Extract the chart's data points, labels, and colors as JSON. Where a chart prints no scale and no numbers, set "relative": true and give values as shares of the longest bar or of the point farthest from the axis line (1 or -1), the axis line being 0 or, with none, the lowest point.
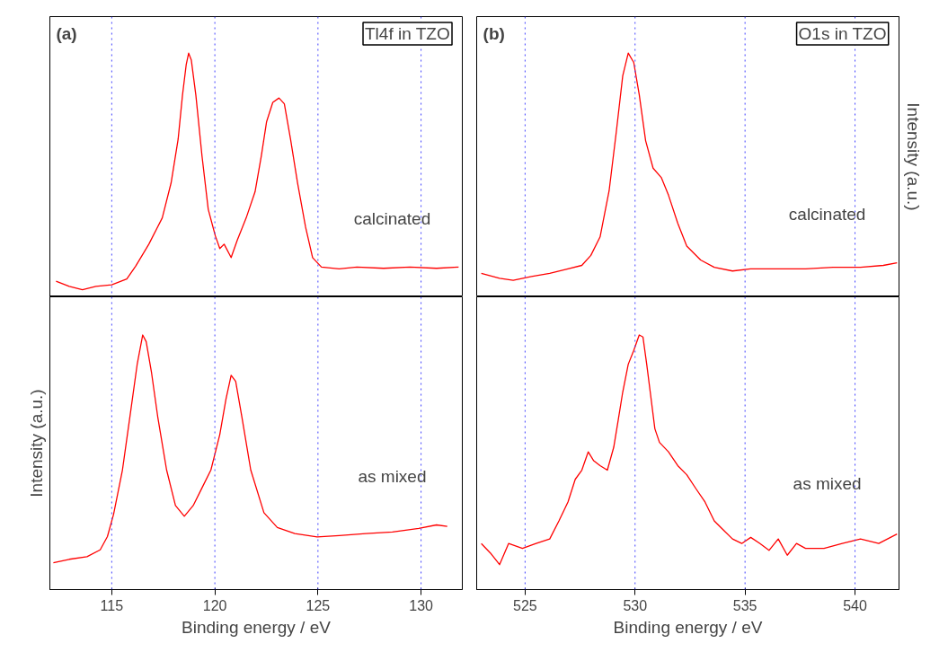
{
  "chart_data": [
    {
      "type": "line",
      "relative": true,
      "xlim": [
        112,
        132
      ],
      "tick_labels": false,
      "grid": false,
      "legend": false,
      "marker": "none",
      "line_style": "solid",
      "annotations": [
        "(a)",
        "Tl4f in TZO"
      ],
      "ref_lines": [
        {
          "axis": "x",
          "value": 115,
          "color": "#4040ff",
          "line_style": "dotted"
        },
        {
          "axis": "x",
          "value": 120,
          "color": "#4040ff",
          "line_style": "dotted"
        },
        {
          "axis": "x",
          "value": 125,
          "color": "#4040ff",
          "line_style": "dotted"
        },
        {
          "axis": "x",
          "value": 130,
          "color": "#4040ff",
          "line_style": "dotted"
        }
      ],
      "series": [
        {
          "name": "calcinated",
          "color": "#ff0000",
          "x": [
            112.3,
            112.94,
            113.58,
            114.23,
            115.0,
            115.73,
            116.16,
            116.8,
            117.45,
            117.88,
            118.22,
            118.43,
            118.61,
            118.73,
            118.86,
            119.08,
            119.38,
            119.68,
            120.02,
            120.24,
            120.45,
            120.79,
            121.09,
            121.52,
            121.95,
            122.25,
            122.51,
            122.81,
            123.11,
            123.37,
            123.67,
            124.01,
            124.4,
            124.74,
            125.17,
            126.03,
            126.89,
            128.18,
            129.46,
            130.75,
            131.82
          ],
          "values": [
            0.064,
            0.043,
            0.029,
            0.043,
            0.049,
            0.073,
            0.126,
            0.216,
            0.324,
            0.468,
            0.647,
            0.827,
            0.952,
            1.0,
            0.971,
            0.827,
            0.576,
            0.359,
            0.251,
            0.198,
            0.216,
            0.161,
            0.233,
            0.324,
            0.431,
            0.576,
            0.719,
            0.798,
            0.816,
            0.792,
            0.647,
            0.468,
            0.286,
            0.161,
            0.122,
            0.115,
            0.122,
            0.117,
            0.122,
            0.117,
            0.122
          ]
        }
      ]
    },
    {
      "type": "line",
      "xlabel": "Binding energy / eV",
      "ylabel": "Intensity (a.u.)",
      "relative": true,
      "xlim": [
        112,
        132
      ],
      "xticks": [
        115,
        120,
        125,
        130
      ],
      "tick_labels": "x",
      "grid": false,
      "legend": false,
      "marker": "none",
      "line_style": "solid",
      "ref_lines": [
        {
          "axis": "x",
          "value": 115,
          "color": "#4040ff",
          "line_style": "dotted"
        },
        {
          "axis": "x",
          "value": 120,
          "color": "#4040ff",
          "line_style": "dotted"
        },
        {
          "axis": "x",
          "value": 125,
          "color": "#4040ff",
          "line_style": "dotted"
        },
        {
          "axis": "x",
          "value": 130,
          "color": "#4040ff",
          "line_style": "dotted"
        }
      ],
      "series": [
        {
          "name": "as mixed",
          "color": "#ff0000",
          "x": [
            112.17,
            112.94,
            113.8,
            114.44,
            114.79,
            115.09,
            115.52,
            115.94,
            116.24,
            116.5,
            116.67,
            116.93,
            117.23,
            117.66,
            118.09,
            118.52,
            118.95,
            119.38,
            119.81,
            120.24,
            120.54,
            120.79,
            121.01,
            121.31,
            121.74,
            122.38,
            123.03,
            123.88,
            124.96,
            126.03,
            127.32,
            128.61,
            129.89,
            130.75,
            131.27
          ],
          "values": [
            0.105,
            0.119,
            0.129,
            0.156,
            0.208,
            0.296,
            0.47,
            0.713,
            0.888,
            1.0,
            0.974,
            0.852,
            0.679,
            0.47,
            0.33,
            0.288,
            0.33,
            0.4,
            0.47,
            0.609,
            0.748,
            0.842,
            0.818,
            0.679,
            0.47,
            0.302,
            0.244,
            0.22,
            0.207,
            0.212,
            0.22,
            0.226,
            0.24,
            0.254,
            0.248
          ]
        }
      ]
    },
    {
      "type": "line",
      "y2label": "Intensity (a.u.)",
      "relative": true,
      "xlim": [
        522.8,
        542
      ],
      "tick_labels": false,
      "grid": false,
      "legend": false,
      "marker": "none",
      "line_style": "solid",
      "annotations": [
        "(b)",
        "O1s in TZO"
      ],
      "ref_lines": [
        {
          "axis": "x",
          "value": 525,
          "color": "#4040ff",
          "line_style": "dotted"
        },
        {
          "axis": "x",
          "value": 530,
          "color": "#4040ff",
          "line_style": "dotted"
        },
        {
          "axis": "x",
          "value": 535,
          "color": "#4040ff",
          "line_style": "dotted"
        },
        {
          "axis": "x",
          "value": 540,
          "color": "#4040ff",
          "line_style": "dotted"
        }
      ],
      "series": [
        {
          "name": "calcinated",
          "color": "#ff0000",
          "x": [
            523.01,
            523.84,
            524.46,
            525.29,
            526.12,
            526.95,
            527.58,
            527.99,
            528.41,
            528.82,
            529.15,
            529.44,
            529.69,
            529.94,
            530.19,
            530.48,
            530.82,
            531.19,
            531.52,
            531.94,
            532.35,
            532.98,
            533.6,
            534.43,
            535.25,
            536.51,
            537.75,
            539.0,
            540.25,
            541.29,
            541.91
          ],
          "values": [
            0.096,
            0.076,
            0.068,
            0.083,
            0.096,
            0.115,
            0.129,
            0.17,
            0.246,
            0.435,
            0.679,
            0.907,
            1.0,
            0.962,
            0.83,
            0.641,
            0.528,
            0.49,
            0.417,
            0.302,
            0.208,
            0.151,
            0.121,
            0.106,
            0.115,
            0.115,
            0.115,
            0.121,
            0.121,
            0.129,
            0.14
          ]
        }
      ]
    },
    {
      "type": "line",
      "xlabel": "Binding energy / eV",
      "relative": true,
      "xlim": [
        522.8,
        542
      ],
      "xticks": [
        525,
        530,
        535,
        540
      ],
      "tick_labels": "x",
      "grid": false,
      "legend": false,
      "marker": "none",
      "line_style": "solid",
      "ref_lines": [
        {
          "axis": "x",
          "value": 525,
          "color": "#4040ff",
          "line_style": "dotted"
        },
        {
          "axis": "x",
          "value": 530,
          "color": "#4040ff",
          "line_style": "dotted"
        },
        {
          "axis": "x",
          "value": 535,
          "color": "#4040ff",
          "line_style": "dotted"
        },
        {
          "axis": "x",
          "value": 540,
          "color": "#4040ff",
          "line_style": "dotted"
        }
      ],
      "series": [
        {
          "name": "as mixed",
          "color": "#ff0000",
          "x": [
            523.01,
            523.42,
            523.84,
            524.25,
            524.88,
            525.5,
            526.12,
            526.54,
            526.95,
            527.28,
            527.58,
            527.87,
            528.12,
            528.41,
            528.74,
            529.03,
            529.24,
            529.44,
            529.69,
            529.94,
            530.19,
            530.36,
            530.53,
            530.69,
            530.9,
            531.11,
            531.52,
            531.94,
            532.35,
            532.77,
            533.18,
            533.6,
            534.02,
            534.43,
            534.85,
            535.26,
            535.68,
            536.09,
            536.51,
            536.92,
            537.34,
            537.75,
            538.59,
            539.42,
            540.25,
            541.08,
            541.91
          ],
          "values": [
            0.181,
            0.144,
            0.098,
            0.181,
            0.162,
            0.181,
            0.199,
            0.27,
            0.344,
            0.433,
            0.469,
            0.541,
            0.506,
            0.487,
            0.469,
            0.559,
            0.669,
            0.776,
            0.885,
            0.939,
            1.0,
            0.992,
            0.885,
            0.776,
            0.632,
            0.578,
            0.541,
            0.487,
            0.451,
            0.396,
            0.344,
            0.27,
            0.234,
            0.199,
            0.181,
            0.205,
            0.181,
            0.154,
            0.199,
            0.135,
            0.181,
            0.162,
            0.162,
            0.181,
            0.199,
            0.181,
            0.218
          ]
        }
      ]
    }
  ]
}
